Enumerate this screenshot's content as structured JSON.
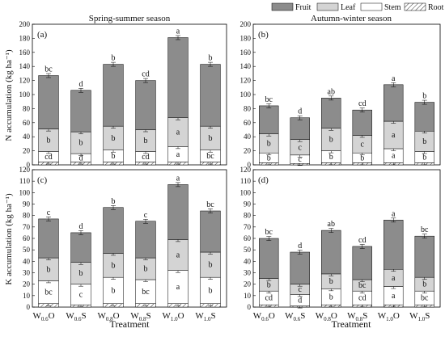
{
  "legend": [
    {
      "name": "Fruit",
      "color": "#8c8c8c"
    },
    {
      "name": "Leaf",
      "color": "#d4d4d4"
    },
    {
      "name": "Stem",
      "color": "#ffffff"
    },
    {
      "name": "Root",
      "color": "hatch"
    }
  ],
  "season_titles": [
    "Spring-summer season",
    "Autumn-winter season"
  ],
  "xlabel": "Treatment",
  "ylabel_n": "N accumulation (kg ha⁻¹)",
  "ylabel_k": "K accumulation (kg ha⁻¹)",
  "treatments": [
    {
      "main": "W",
      "sub": "0.6",
      "suffix": "O"
    },
    {
      "main": "W",
      "sub": "0.6",
      "suffix": "S"
    },
    {
      "main": "W",
      "sub": "0.8",
      "suffix": "O"
    },
    {
      "main": "W",
      "sub": "0.8",
      "suffix": "S"
    },
    {
      "main": "W",
      "sub": "1.0",
      "suffix": "O"
    },
    {
      "main": "W",
      "sub": "1.0",
      "suffix": "S"
    }
  ],
  "chart_data": [
    {
      "type": "bar",
      "panel": "(a)",
      "ylim": [
        0,
        200
      ],
      "yticks": [
        0,
        20,
        40,
        60,
        80,
        100,
        120,
        140,
        160,
        180,
        200
      ],
      "series": [
        {
          "name": "Root",
          "values": [
            4,
            4,
            4,
            4,
            4,
            4
          ]
        },
        {
          "name": "Stem",
          "values": [
            15,
            12,
            17,
            15,
            22,
            17
          ]
        },
        {
          "name": "Leaf",
          "values": [
            32,
            31,
            34,
            31,
            41,
            34
          ]
        },
        {
          "name": "Fruit",
          "values": [
            76,
            59,
            88,
            70,
            114,
            88
          ]
        }
      ],
      "totals": [
        127,
        106,
        143,
        120,
        181,
        143
      ],
      "letters": {
        "Fruit": [
          "bc",
          "d",
          "b",
          "cd",
          "a",
          "b"
        ],
        "Leaf": [
          "b",
          "b",
          "b",
          "b",
          "a",
          "b"
        ],
        "Stem": [
          "cd",
          "d",
          "b",
          "cd",
          "a",
          "bc"
        ],
        "Root": [
          "bc",
          "c",
          "ab",
          "c",
          "a",
          "b"
        ]
      }
    },
    {
      "type": "bar",
      "panel": "(b)",
      "ylim": [
        0,
        200
      ],
      "yticks": [
        0,
        20,
        40,
        60,
        80,
        100,
        120,
        140,
        160,
        180,
        200
      ],
      "series": [
        {
          "name": "Root",
          "values": [
            3,
            2,
            3,
            3,
            3,
            3
          ]
        },
        {
          "name": "Stem",
          "values": [
            14,
            12,
            17,
            14,
            20,
            16
          ]
        },
        {
          "name": "Leaf",
          "values": [
            27,
            22,
            32,
            25,
            39,
            29
          ]
        },
        {
          "name": "Fruit",
          "values": [
            40,
            31,
            43,
            36,
            52,
            41
          ]
        }
      ],
      "totals": [
        84,
        67,
        95,
        78,
        114,
        89
      ],
      "letters": {
        "Fruit": [
          "bc",
          "d",
          "ab",
          "cd",
          "a",
          "b"
        ],
        "Leaf": [
          "b",
          "c",
          "b",
          "c",
          "a",
          "b"
        ],
        "Stem": [
          "b",
          "c",
          "b",
          "b",
          "a",
          "b"
        ],
        "Root": [
          "b",
          "c",
          "b",
          "b",
          "a",
          "b"
        ]
      }
    },
    {
      "type": "bar",
      "panel": "(c)",
      "ylim": [
        0,
        120
      ],
      "yticks": [
        0,
        10,
        20,
        30,
        40,
        50,
        60,
        70,
        80,
        90,
        100,
        110,
        120
      ],
      "series": [
        {
          "name": "Root",
          "values": [
            3,
            2,
            3,
            3,
            3,
            3
          ]
        },
        {
          "name": "Stem",
          "values": [
            20,
            18,
            23,
            21,
            29,
            23
          ]
        },
        {
          "name": "Leaf",
          "values": [
            20,
            19,
            21,
            19,
            27,
            22
          ]
        },
        {
          "name": "Fruit",
          "values": [
            34,
            26,
            40,
            32,
            48,
            36
          ]
        }
      ],
      "totals": [
        77,
        65,
        87,
        75,
        107,
        84
      ],
      "letters": {
        "Fruit": [
          "c",
          "d",
          "b",
          "c",
          "a",
          "bc"
        ],
        "Leaf": [
          "b",
          "b",
          "b",
          "b",
          "a",
          "b"
        ],
        "Stem": [
          "bc",
          "c",
          "b",
          "bc",
          "a",
          "b"
        ],
        "Root": [
          "b",
          "b",
          "ab",
          "ab",
          "a",
          "ab"
        ]
      }
    },
    {
      "type": "bar",
      "panel": "(d)",
      "ylim": [
        0,
        120
      ],
      "yticks": [
        0,
        10,
        20,
        30,
        40,
        50,
        60,
        70,
        80,
        90,
        100,
        110,
        120
      ],
      "series": [
        {
          "name": "Root",
          "values": [
            2,
            1,
            2,
            2,
            2,
            2
          ]
        },
        {
          "name": "Stem",
          "values": [
            12,
            10,
            14,
            12,
            16,
            12
          ]
        },
        {
          "name": "Leaf",
          "values": [
            11,
            9,
            13,
            10,
            15,
            12
          ]
        },
        {
          "name": "Fruit",
          "values": [
            35,
            28,
            38,
            29,
            43,
            36
          ]
        }
      ],
      "totals": [
        60,
        48,
        67,
        53,
        76,
        62
      ],
      "letters": {
        "Fruit": [
          "bc",
          "d",
          "ab",
          "cd",
          "a",
          "bc"
        ],
        "Leaf": [
          "b",
          "c",
          "b",
          "bc",
          "a",
          "b"
        ],
        "Stem": [
          "cd",
          "d",
          "b",
          "cd",
          "a",
          "bc"
        ],
        "Root": [
          "bc",
          "c",
          "ab",
          "c",
          "a",
          "b"
        ]
      }
    }
  ]
}
